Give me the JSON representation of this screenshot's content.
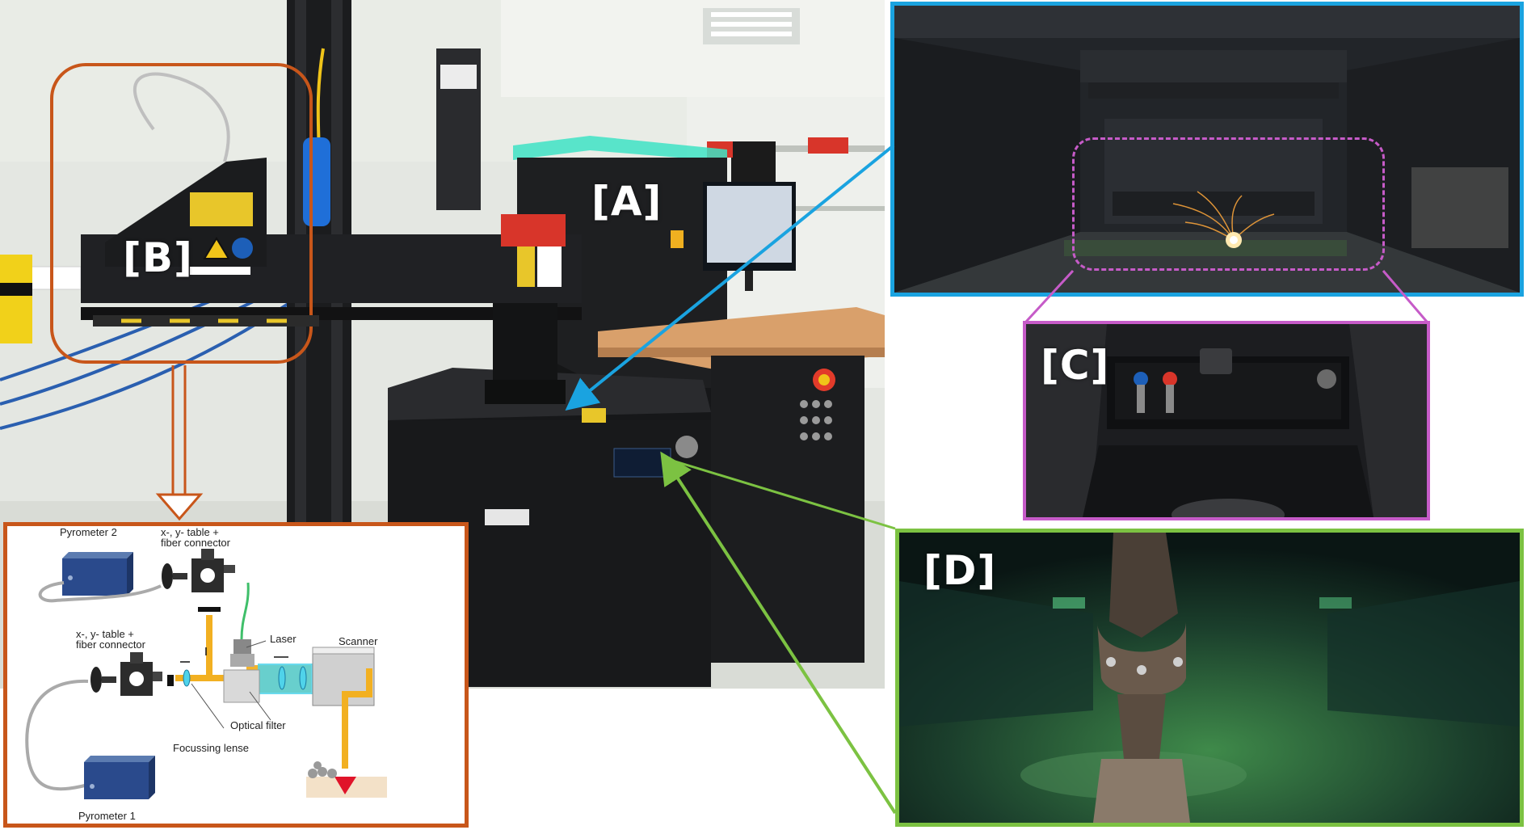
{
  "panels": {
    "A": {
      "tag": "[A]"
    },
    "B": {
      "tag": "[B]"
    },
    "C": {
      "tag": "[C]"
    },
    "D": {
      "tag": "[D]"
    }
  },
  "colors": {
    "b_frame": "#c8561a",
    "a_link": "#1aa3e0",
    "c_frame": "#c65bc8",
    "d_frame": "#7cc242",
    "beam": "#f2b021",
    "beam_cyan": "#4fd3ea"
  },
  "schematic": {
    "pyrometer2": "Pyrometer 2",
    "pyrometer1": "Pyrometer 1",
    "xy_table_top": [
      "x-, y- table +",
      "fiber connector"
    ],
    "xy_table_mid": [
      "x-, y- table +",
      "fiber connector"
    ],
    "laser": "Laser",
    "scanner": "Scanner",
    "optical_filter": "Optical filter",
    "focussing_lense": "Focussing lense"
  },
  "icons": [
    "danger-sign-icon",
    "laser-warning-icon",
    "eye-protection-icon",
    "spark-icon"
  ]
}
